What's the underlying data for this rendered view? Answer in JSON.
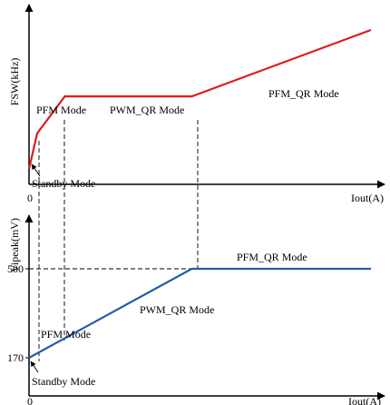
{
  "chart_data": [
    {
      "type": "line",
      "ylabel": "FSW(kHz)",
      "xlabel": "Iout(A)",
      "x_origin_label": "0",
      "series": [
        {
          "color": "#e0191e",
          "points": [
            [
              0,
              0.1
            ],
            [
              0.05,
              0.33
            ],
            [
              0.22,
              0.57
            ],
            [
              1.0,
              0.57
            ],
            [
              2.1,
              1.0
            ]
          ]
        }
      ],
      "mode_labels": [
        {
          "key": "pfm",
          "text": "PFM Mode"
        },
        {
          "key": "pwm",
          "text": "PWM_QR Mode"
        },
        {
          "key": "pfmqr",
          "text": "PFM_QR Mode"
        },
        {
          "key": "standby",
          "text": "Standby Mode"
        }
      ]
    },
    {
      "type": "line",
      "ylabel": "Vipeak(mV)",
      "xlabel": "Iout(A)",
      "x_origin_label": "0",
      "y_ticks": [
        {
          "value": 170,
          "label": "170"
        },
        {
          "value": 500,
          "label": "500"
        }
      ],
      "series": [
        {
          "color": "#1f5fa8",
          "points": [
            [
              0,
              170
            ],
            [
              1.0,
              500
            ],
            [
              2.1,
              500
            ]
          ]
        }
      ],
      "mode_labels": [
        {
          "key": "pfmqr",
          "text": "PFM_QR Mode"
        },
        {
          "key": "pwm",
          "text": "PWM_QR Mode"
        },
        {
          "key": "pfm",
          "text": "PFM Mode"
        },
        {
          "key": "standby",
          "text": "Standby Mode"
        }
      ]
    }
  ]
}
